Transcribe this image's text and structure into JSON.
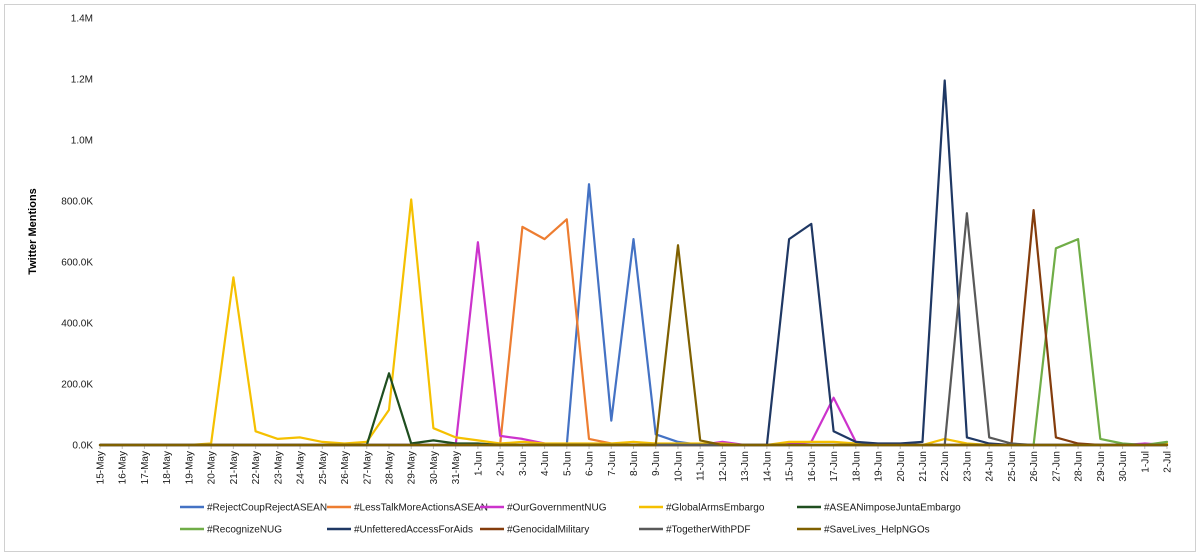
{
  "chart_data": {
    "type": "line",
    "title": "",
    "xlabel": "",
    "ylabel": "Twitter  Mentions",
    "ylim": [
      0,
      1400000
    ],
    "yticks": [
      0,
      200000,
      400000,
      600000,
      800000,
      1000000,
      1200000,
      1400000
    ],
    "ytick_labels": [
      "0.0K",
      "200.0K",
      "400.0K",
      "600.0K",
      "800.0K",
      "1.0M",
      "1.2M",
      "1.4M"
    ],
    "legend_position": "bottom",
    "categories": [
      "15-May",
      "16-May",
      "17-May",
      "18-May",
      "19-May",
      "20-May",
      "21-May",
      "22-May",
      "23-May",
      "24-May",
      "25-May",
      "26-May",
      "27-May",
      "28-May",
      "29-May",
      "30-May",
      "31-May",
      "1-Jun",
      "2-Jun",
      "3-Jun",
      "4-Jun",
      "5-Jun",
      "6-Jun",
      "7-Jun",
      "8-Jun",
      "9-Jun",
      "10-Jun",
      "11-Jun",
      "12-Jun",
      "13-Jun",
      "14-Jun",
      "15-Jun",
      "16-Jun",
      "17-Jun",
      "18-Jun",
      "19-Jun",
      "20-Jun",
      "21-Jun",
      "22-Jun",
      "23-Jun",
      "24-Jun",
      "25-Jun",
      "26-Jun",
      "27-Jun",
      "28-Jun",
      "29-Jun",
      "30-Jun",
      "1-Jul",
      "2-Jul"
    ],
    "series": [
      {
        "name": "#RejectCoupRejectASEAN",
        "color": "#4472c4",
        "values": [
          0,
          0,
          0,
          0,
          0,
          0,
          0,
          0,
          0,
          0,
          0,
          0,
          0,
          0,
          0,
          0,
          0,
          0,
          0,
          0,
          0,
          0,
          855000,
          80000,
          675000,
          35000,
          10000,
          0,
          0,
          0,
          0,
          0,
          0,
          0,
          0,
          0,
          0,
          0,
          0,
          0,
          0,
          0,
          0,
          0,
          0,
          0,
          0,
          0,
          0
        ]
      },
      {
        "name": "#LessTalkMoreActionsASEAN",
        "color": "#ed7d31",
        "values": [
          0,
          0,
          0,
          0,
          0,
          0,
          0,
          0,
          0,
          0,
          0,
          0,
          0,
          0,
          0,
          0,
          0,
          0,
          0,
          715000,
          675000,
          740000,
          20000,
          5000,
          0,
          0,
          0,
          0,
          0,
          0,
          0,
          0,
          0,
          0,
          0,
          0,
          0,
          0,
          0,
          0,
          0,
          0,
          0,
          0,
          0,
          0,
          0,
          0,
          0
        ]
      },
      {
        "name": "#OurGovernmentNUG",
        "color": "#cc33cc",
        "values": [
          0,
          0,
          0,
          0,
          0,
          0,
          0,
          0,
          0,
          0,
          0,
          0,
          0,
          0,
          0,
          0,
          0,
          665000,
          30000,
          20000,
          5000,
          0,
          0,
          0,
          0,
          0,
          0,
          0,
          10000,
          0,
          0,
          5000,
          10000,
          155000,
          10000,
          0,
          0,
          0,
          0,
          0,
          0,
          0,
          0,
          0,
          0,
          0,
          0,
          5000,
          0
        ]
      },
      {
        "name": "#GlobalArmsEmbargo",
        "color": "#f5c000",
        "values": [
          0,
          0,
          0,
          0,
          0,
          5000,
          550000,
          45000,
          20000,
          25000,
          10000,
          5000,
          10000,
          115000,
          805000,
          55000,
          25000,
          15000,
          5000,
          10000,
          5000,
          5000,
          5000,
          5000,
          10000,
          5000,
          5000,
          5000,
          5000,
          0,
          0,
          10000,
          10000,
          10000,
          5000,
          0,
          0,
          0,
          20000,
          5000,
          0,
          0,
          0,
          0,
          0,
          0,
          0,
          0,
          5000
        ]
      },
      {
        "name": "#ASEANimposeJuntaEmbargo",
        "color": "#1f4e1f",
        "values": [
          0,
          0,
          0,
          0,
          0,
          0,
          0,
          0,
          0,
          0,
          0,
          0,
          0,
          235000,
          5000,
          15000,
          5000,
          5000,
          0,
          0,
          0,
          0,
          0,
          0,
          0,
          0,
          0,
          0,
          0,
          0,
          0,
          0,
          0,
          0,
          0,
          0,
          0,
          0,
          0,
          0,
          0,
          0,
          0,
          0,
          0,
          0,
          0,
          0,
          0
        ]
      },
      {
        "name": "#RecognizeNUG",
        "color": "#70ad47",
        "values": [
          0,
          0,
          0,
          0,
          0,
          0,
          0,
          0,
          0,
          0,
          0,
          0,
          0,
          0,
          0,
          0,
          0,
          0,
          0,
          0,
          0,
          0,
          0,
          0,
          0,
          0,
          0,
          0,
          0,
          0,
          0,
          0,
          0,
          0,
          0,
          0,
          0,
          0,
          0,
          0,
          0,
          0,
          0,
          645000,
          675000,
          20000,
          5000,
          0,
          10000
        ]
      },
      {
        "name": "#UnfetteredAccessForAids",
        "color": "#1f3864",
        "values": [
          0,
          0,
          0,
          0,
          0,
          0,
          0,
          0,
          0,
          0,
          0,
          0,
          0,
          0,
          0,
          0,
          0,
          0,
          0,
          0,
          0,
          0,
          0,
          0,
          0,
          0,
          0,
          0,
          0,
          0,
          0,
          675000,
          725000,
          45000,
          10000,
          5000,
          5000,
          10000,
          1195000,
          25000,
          5000,
          0,
          0,
          0,
          0,
          0,
          0,
          0,
          0
        ]
      },
      {
        "name": "#GenocidalMilitary",
        "color": "#843c0c",
        "values": [
          0,
          0,
          0,
          0,
          0,
          0,
          0,
          0,
          0,
          0,
          0,
          0,
          0,
          0,
          0,
          0,
          0,
          0,
          0,
          0,
          0,
          0,
          0,
          0,
          0,
          0,
          0,
          0,
          0,
          0,
          0,
          0,
          0,
          0,
          0,
          0,
          0,
          0,
          0,
          0,
          0,
          0,
          770000,
          25000,
          5000,
          0,
          0,
          0,
          0
        ]
      },
      {
        "name": "#TogetherWithPDF",
        "color": "#595959",
        "values": [
          0,
          0,
          0,
          0,
          0,
          0,
          0,
          0,
          0,
          0,
          0,
          0,
          0,
          0,
          0,
          0,
          0,
          0,
          0,
          0,
          0,
          0,
          0,
          0,
          0,
          0,
          0,
          0,
          0,
          0,
          0,
          0,
          0,
          0,
          0,
          0,
          0,
          0,
          0,
          760000,
          25000,
          5000,
          0,
          0,
          0,
          0,
          0,
          0,
          0
        ]
      },
      {
        "name": "#SaveLives_HelpNGOs",
        "color": "#7f6000",
        "values": [
          0,
          0,
          0,
          0,
          0,
          0,
          0,
          0,
          0,
          0,
          0,
          0,
          0,
          0,
          0,
          0,
          0,
          0,
          0,
          0,
          0,
          0,
          0,
          0,
          0,
          0,
          655000,
          15000,
          0,
          0,
          0,
          0,
          0,
          0,
          0,
          0,
          0,
          0,
          0,
          0,
          0,
          0,
          0,
          0,
          0,
          0,
          0,
          0,
          0
        ]
      }
    ]
  }
}
